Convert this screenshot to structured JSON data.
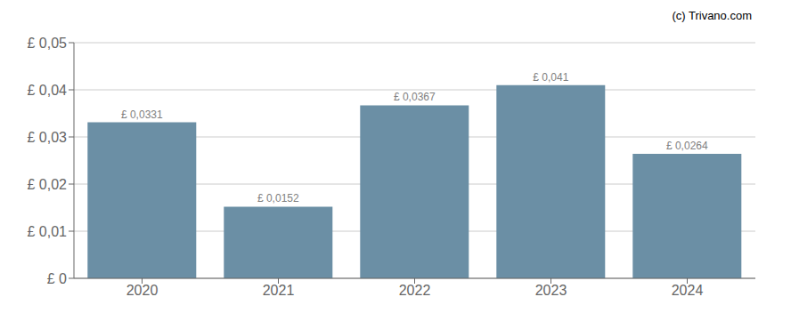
{
  "chart_data": {
    "type": "bar",
    "categories": [
      "2020",
      "2021",
      "2022",
      "2023",
      "2024"
    ],
    "values": [
      0.0331,
      0.0152,
      0.0367,
      0.041,
      0.0264
    ],
    "value_labels": [
      "£ 0,0331",
      "£ 0,0152",
      "£ 0,0367",
      "£ 0,041",
      "£ 0,0264"
    ],
    "data_labels": true,
    "color": "#6b8fa5",
    "ylim": [
      0,
      0.05
    ],
    "yticks": [
      {
        "value": 0,
        "label": "£ 0"
      },
      {
        "value": 0.01,
        "label": "£ 0,01"
      },
      {
        "value": 0.02,
        "label": "£ 0,02"
      },
      {
        "value": 0.03,
        "label": "£ 0,03"
      },
      {
        "value": 0.04,
        "label": "£ 0,04"
      },
      {
        "value": 0.05,
        "label": "£ 0,05"
      }
    ],
    "grid": true,
    "annotations": [
      "(c) Trivano.com"
    ]
  }
}
